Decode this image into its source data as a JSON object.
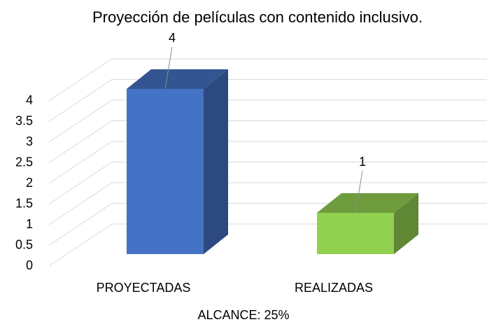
{
  "chart_data": {
    "type": "bar3d",
    "title": "Proyección de películas con contenido inclusivo.",
    "x_label": "ALCANCE: 25%",
    "categories": [
      "PROYECTADAS",
      "REALIZADAS"
    ],
    "values": [
      4,
      1
    ],
    "colors": [
      "#4472c4",
      "#92d050"
    ],
    "ylim": [
      0,
      4
    ],
    "yticks": [
      0,
      0.5,
      1,
      1.5,
      2,
      2.5,
      3,
      3.5,
      4
    ],
    "grid": true
  }
}
